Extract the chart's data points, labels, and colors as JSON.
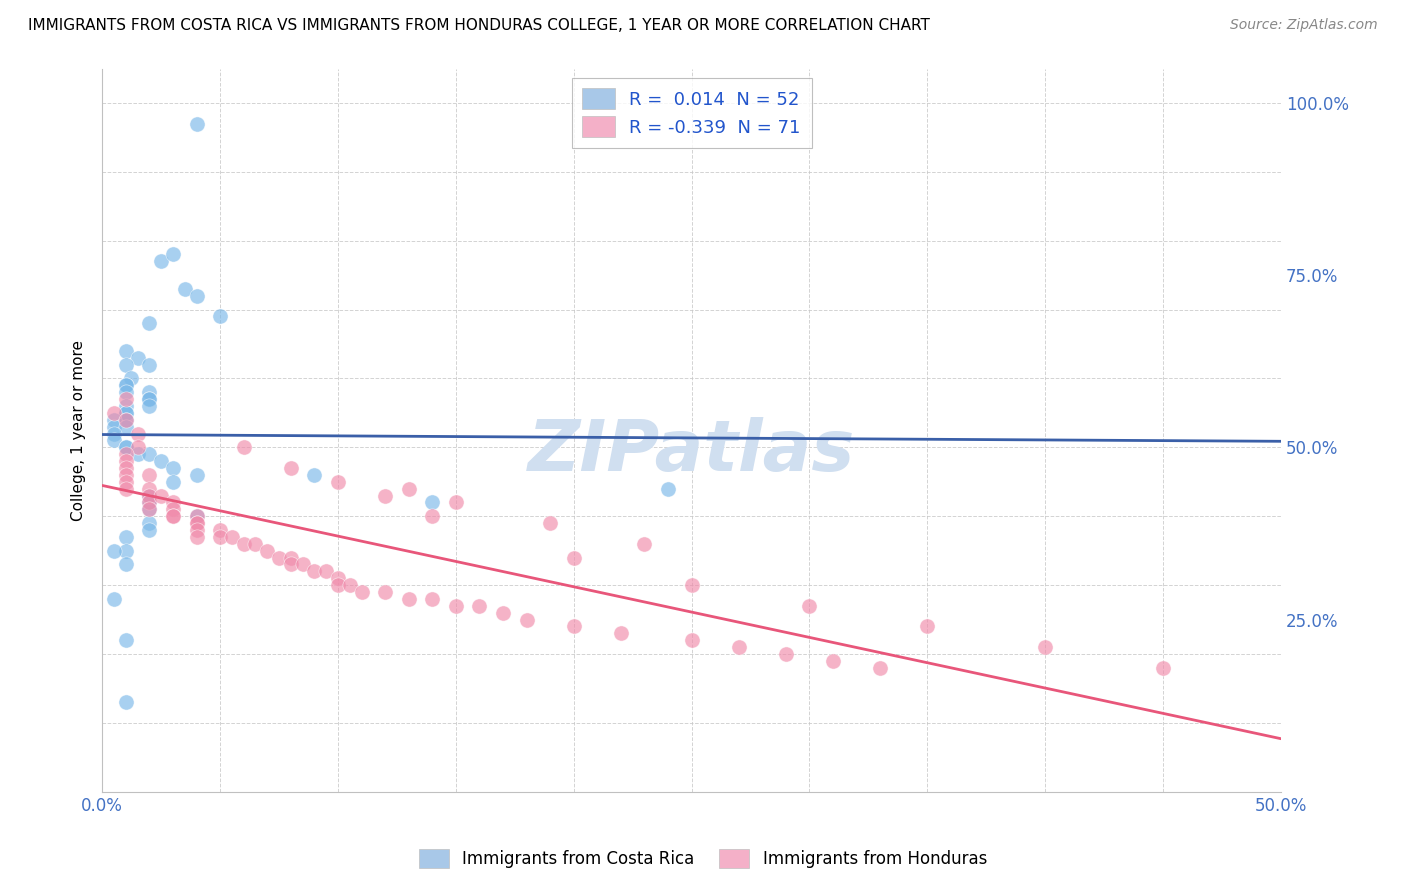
{
  "title": "IMMIGRANTS FROM COSTA RICA VS IMMIGRANTS FROM HONDURAS COLLEGE, 1 YEAR OR MORE CORRELATION CHART",
  "source": "Source: ZipAtlas.com",
  "ylabel": "College, 1 year or more",
  "legend_entries_top": [
    "R =  0.014  N = 52",
    "R = -0.339  N = 71"
  ],
  "legend_labels_bottom": [
    "Immigrants from Costa Rica",
    "Immigrants from Honduras"
  ],
  "blue_dot_color": "#7ab8e8",
  "pink_dot_color": "#f08aaa",
  "blue_line_color": "#3a5fa8",
  "pink_line_color": "#e8567a",
  "blue_legend_patch": "#a8c8e8",
  "pink_legend_patch": "#f4b0c8",
  "watermark_color": "#d0dff0",
  "watermark_text": "ZIPatlas",
  "xlim": [
    0.0,
    0.5
  ],
  "ylim": [
    0.0,
    1.05
  ],
  "right_yticks": [
    0.25,
    0.5,
    0.75,
    1.0
  ],
  "right_yticklabels": [
    "25.0%",
    "50.0%",
    "75.0%",
    "100.0%"
  ],
  "costa_rica_x": [
    0.04,
    0.025,
    0.03,
    0.035,
    0.04,
    0.05,
    0.02,
    0.01,
    0.015,
    0.02,
    0.01,
    0.012,
    0.01,
    0.01,
    0.02,
    0.01,
    0.02,
    0.02,
    0.02,
    0.01,
    0.01,
    0.01,
    0.01,
    0.005,
    0.005,
    0.01,
    0.005,
    0.005,
    0.01,
    0.01,
    0.015,
    0.02,
    0.025,
    0.03,
    0.04,
    0.09,
    0.03,
    0.24,
    0.02,
    0.14,
    0.02,
    0.02,
    0.04,
    0.02,
    0.02,
    0.01,
    0.01,
    0.005,
    0.01,
    0.005,
    0.01,
    0.01
  ],
  "costa_rica_y": [
    0.97,
    0.77,
    0.78,
    0.73,
    0.72,
    0.69,
    0.68,
    0.64,
    0.63,
    0.62,
    0.62,
    0.6,
    0.59,
    0.59,
    0.58,
    0.58,
    0.57,
    0.57,
    0.56,
    0.56,
    0.55,
    0.55,
    0.54,
    0.54,
    0.53,
    0.53,
    0.52,
    0.51,
    0.5,
    0.5,
    0.49,
    0.49,
    0.48,
    0.47,
    0.46,
    0.46,
    0.45,
    0.44,
    0.43,
    0.42,
    0.42,
    0.41,
    0.4,
    0.39,
    0.38,
    0.37,
    0.35,
    0.35,
    0.33,
    0.28,
    0.22,
    0.13
  ],
  "honduras_x": [
    0.005,
    0.01,
    0.01,
    0.015,
    0.015,
    0.01,
    0.01,
    0.01,
    0.01,
    0.01,
    0.01,
    0.02,
    0.02,
    0.02,
    0.02,
    0.025,
    0.02,
    0.03,
    0.03,
    0.03,
    0.03,
    0.04,
    0.04,
    0.04,
    0.04,
    0.04,
    0.05,
    0.05,
    0.055,
    0.06,
    0.065,
    0.07,
    0.075,
    0.08,
    0.08,
    0.085,
    0.09,
    0.095,
    0.1,
    0.1,
    0.105,
    0.11,
    0.12,
    0.13,
    0.14,
    0.15,
    0.16,
    0.17,
    0.18,
    0.2,
    0.22,
    0.25,
    0.27,
    0.29,
    0.31,
    0.33,
    0.13,
    0.15,
    0.19,
    0.23,
    0.08,
    0.1,
    0.12,
    0.14,
    0.2,
    0.25,
    0.3,
    0.35,
    0.4,
    0.45,
    0.06
  ],
  "honduras_y": [
    0.55,
    0.57,
    0.54,
    0.52,
    0.5,
    0.49,
    0.48,
    0.47,
    0.46,
    0.45,
    0.44,
    0.46,
    0.44,
    0.43,
    0.42,
    0.43,
    0.41,
    0.42,
    0.41,
    0.4,
    0.4,
    0.4,
    0.39,
    0.39,
    0.38,
    0.37,
    0.38,
    0.37,
    0.37,
    0.36,
    0.36,
    0.35,
    0.34,
    0.34,
    0.33,
    0.33,
    0.32,
    0.32,
    0.31,
    0.3,
    0.3,
    0.29,
    0.29,
    0.28,
    0.28,
    0.27,
    0.27,
    0.26,
    0.25,
    0.24,
    0.23,
    0.22,
    0.21,
    0.2,
    0.19,
    0.18,
    0.44,
    0.42,
    0.39,
    0.36,
    0.47,
    0.45,
    0.43,
    0.4,
    0.34,
    0.3,
    0.27,
    0.24,
    0.21,
    0.18,
    0.5
  ]
}
